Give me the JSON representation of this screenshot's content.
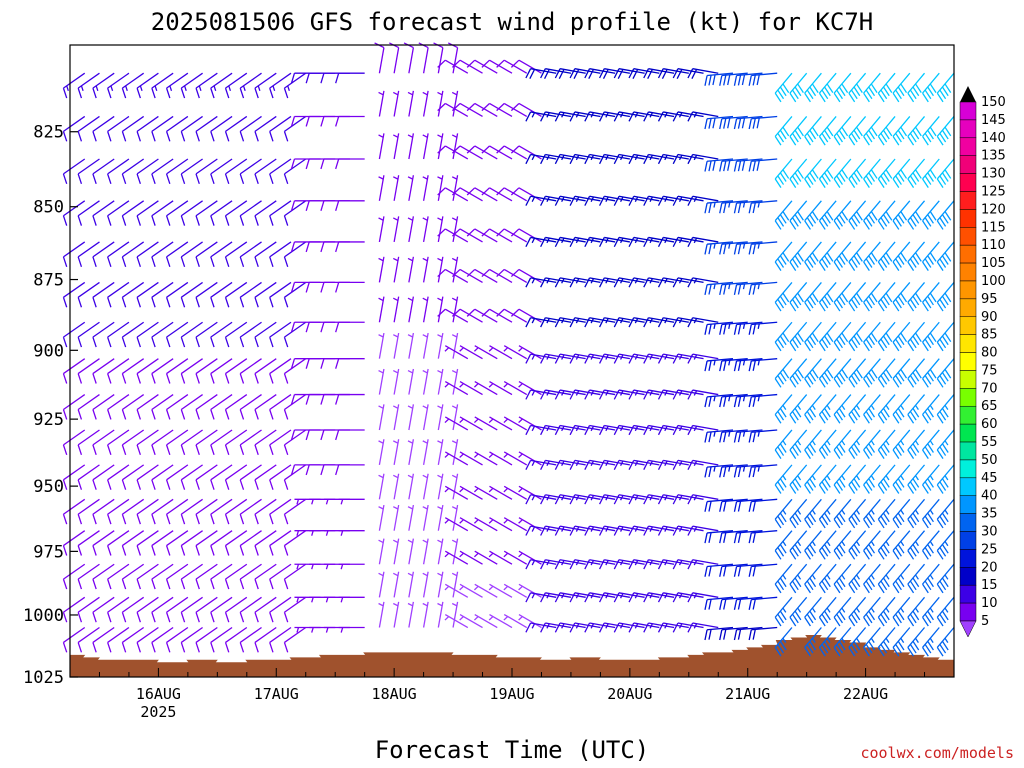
{
  "chart_data": {
    "type": "wind_barbs",
    "title": "2025081506 GFS forecast wind profile (kt) for KC7H",
    "xlabel": "Forecast Time (UTC)",
    "ylabel": "",
    "x_ticks": [
      {
        "label": "16AUG",
        "sublabel": "2025",
        "hour": 18
      },
      {
        "label": "17AUG",
        "hour": 42
      },
      {
        "label": "18AUG",
        "hour": 66
      },
      {
        "label": "19AUG",
        "hour": 90
      },
      {
        "label": "20AUG",
        "hour": 114
      },
      {
        "label": "21AUG",
        "hour": 138
      },
      {
        "label": "22AUG",
        "hour": 162
      }
    ],
    "xlim": [
      0,
      180
    ],
    "y_ticks": [
      825,
      850,
      875,
      900,
      925,
      950,
      975,
      1000,
      1025
    ],
    "ylim_hPa": [
      1025,
      797
    ],
    "levels_hPa": [
      1005,
      993,
      980,
      967,
      955,
      942,
      929,
      916,
      903,
      890,
      876,
      862,
      848,
      834,
      820,
      806
    ],
    "time_step_h": 3,
    "colorbar": {
      "labels": [
        150,
        145,
        140,
        135,
        130,
        125,
        120,
        115,
        110,
        105,
        100,
        95,
        90,
        85,
        80,
        75,
        70,
        65,
        60,
        55,
        50,
        45,
        40,
        35,
        30,
        25,
        20,
        15,
        10,
        5
      ],
      "colors": [
        "#d700d7",
        "#e600be",
        "#f000a0",
        "#f00078",
        "#ff0050",
        "#ff1e1e",
        "#ff3200",
        "#ff5000",
        "#ff6e00",
        "#ff8200",
        "#ff9600",
        "#ffaa00",
        "#ffc800",
        "#ffe600",
        "#ffff00",
        "#c8ff00",
        "#78ff00",
        "#32f032",
        "#00e650",
        "#00e6a0",
        "#00f0dc",
        "#00c8ff",
        "#0096ff",
        "#0064f0",
        "#0040e6",
        "#0014dc",
        "#0000c8",
        "#3c00e6",
        "#7800f0",
        "#a040ff"
      ]
    },
    "terrain": {
      "color": "#a0522d",
      "hours": [
        0,
        3,
        6,
        9,
        12,
        15,
        18,
        21,
        24,
        27,
        30,
        33,
        36,
        39,
        42,
        45,
        48,
        51,
        54,
        57,
        60,
        63,
        66,
        69,
        72,
        75,
        78,
        81,
        84,
        87,
        90,
        93,
        96,
        99,
        102,
        105,
        108,
        111,
        114,
        117,
        120,
        123,
        126,
        129,
        132,
        135,
        138,
        141,
        144,
        147,
        150,
        153,
        156,
        159,
        162,
        165,
        168,
        171,
        174,
        177,
        180
      ],
      "surface_hPa": [
        1016,
        1017,
        1018,
        1018,
        1018,
        1018,
        1019,
        1019,
        1018,
        1018,
        1019,
        1019,
        1018,
        1018,
        1018,
        1017,
        1017,
        1016,
        1016,
        1016,
        1015,
        1015,
        1015,
        1015,
        1015,
        1015,
        1016,
        1016,
        1016,
        1017,
        1017,
        1017,
        1018,
        1018,
        1017,
        1017,
        1018,
        1018,
        1018,
        1018,
        1017,
        1017,
        1016,
        1015,
        1015,
        1014,
        1013,
        1012,
        1010,
        1009,
        1008,
        1009,
        1010,
        1011,
        1013,
        1014,
        1015,
        1016,
        1017,
        1018,
        1018
      ]
    },
    "wind_regimes": [
      {
        "until_hour": 48,
        "dir_deg": 235,
        "kt": 10
      },
      {
        "until_hour": 60,
        "dir_deg": 270,
        "kt": 8
      },
      {
        "until_hour": 78,
        "dir_deg": 10,
        "kt": 5
      },
      {
        "until_hour": 96,
        "dir_deg": 300,
        "kt": 7
      },
      {
        "until_hour": 132,
        "dir_deg": 280,
        "kt": 15
      },
      {
        "until_hour": 146,
        "dir_deg": 265,
        "kt": 22
      },
      {
        "until_hour": 180,
        "dir_deg": 220,
        "kt": 35
      }
    ]
  },
  "credit": "coolwx.com/models"
}
